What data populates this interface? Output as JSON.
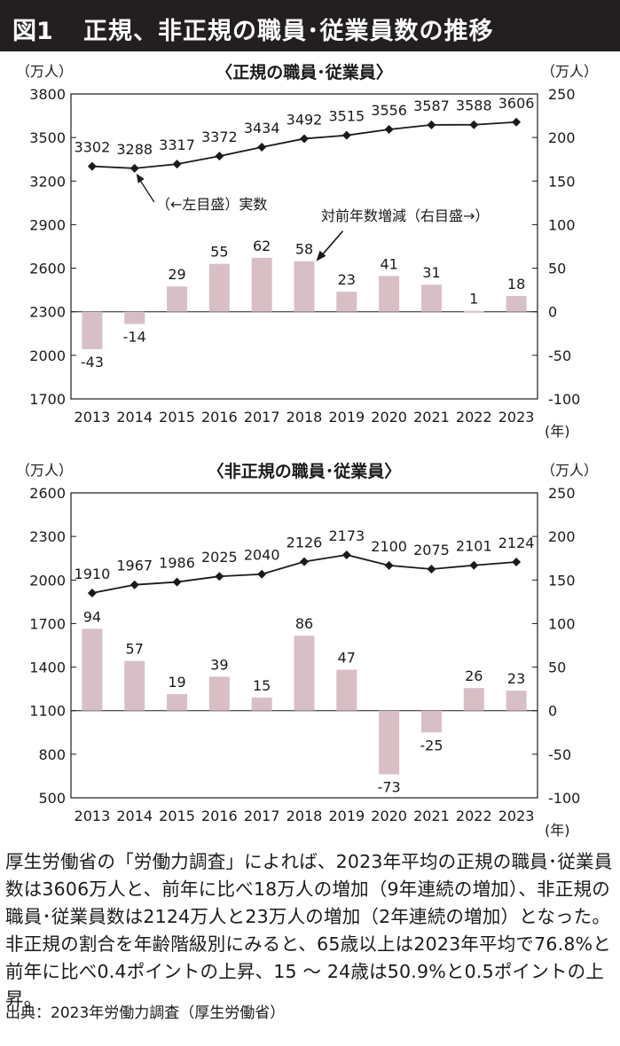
{
  "figure": {
    "number": "図1",
    "title": "正規、非正規の職員･従業員数の推移"
  },
  "chart_data": [
    {
      "type": "bar+line",
      "title": "〈正規の職員･従業員〉",
      "left_unit": "（万人）",
      "right_unit": "（万人）",
      "x_unit": "(年)",
      "categories": [
        "2013",
        "2014",
        "2015",
        "2016",
        "2017",
        "2018",
        "2019",
        "2020",
        "2021",
        "2022",
        "2023"
      ],
      "line": {
        "axis": "left",
        "values": [
          3302,
          3288,
          3317,
          3372,
          3434,
          3492,
          3515,
          3556,
          3587,
          3588,
          3606
        ]
      },
      "bars": {
        "axis": "right",
        "values": [
          -43,
          -14,
          29,
          55,
          62,
          58,
          23,
          41,
          31,
          1,
          18
        ]
      },
      "left_ylim": [
        1700,
        3800
      ],
      "left_ticks": [
        1700,
        2000,
        2300,
        2600,
        2900,
        3200,
        3500,
        3800
      ],
      "right_ylim": [
        -100,
        250
      ],
      "right_ticks": [
        -100,
        -50,
        0,
        50,
        100,
        150,
        200,
        250
      ],
      "annotations": [
        "（←左目盛）実数",
        "対前年数増減（右目盛→）"
      ]
    },
    {
      "type": "bar+line",
      "title": "〈非正規の職員･従業員〉",
      "left_unit": "（万人）",
      "right_unit": "（万人）",
      "x_unit": "(年)",
      "categories": [
        "2013",
        "2014",
        "2015",
        "2016",
        "2017",
        "2018",
        "2019",
        "2020",
        "2021",
        "2022",
        "2023"
      ],
      "line": {
        "axis": "left",
        "values": [
          1910,
          1967,
          1986,
          2025,
          2040,
          2126,
          2173,
          2100,
          2075,
          2101,
          2124
        ]
      },
      "bars": {
        "axis": "right",
        "values": [
          94,
          57,
          19,
          39,
          15,
          86,
          47,
          -73,
          -25,
          26,
          23
        ]
      },
      "left_ylim": [
        500,
        2600
      ],
      "left_ticks": [
        500,
        800,
        1100,
        1400,
        1700,
        2000,
        2300,
        2600
      ],
      "right_ylim": [
        -100,
        250
      ],
      "right_ticks": [
        -100,
        -50,
        0,
        50,
        100,
        150,
        200,
        250
      ],
      "annotations": []
    }
  ],
  "colors": {
    "bar": "#d8bfc6",
    "line": "#1a1a1a",
    "title_bg": "#231f20"
  },
  "description": "厚生労働省の「労働力調査」によれば、2023年平均の正規の職員･従業員数は3606万人と、前年に比べ18万人の増加（9年連続の増加）、非正規の職員･従業員数は2124万人と23万人の増加（2年連続の増加）となった。非正規の割合を年齢階級別にみると、65歳以上は2023年平均で76.8%と前年に比べ0.4ポイントの上昇、15 〜 24歳は50.9%と0.5ポイントの上昇。",
  "source": "出典：2023年労働力調査（厚生労働省）"
}
